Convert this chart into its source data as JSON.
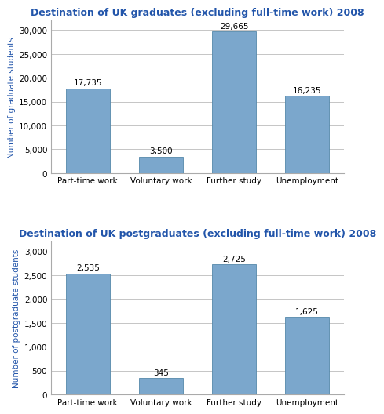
{
  "grad_title": "Destination of UK graduates (excluding full-time work) 2008",
  "postgrad_title": "Destination of UK postgraduates (excluding full-time work) 2008",
  "categories": [
    "Part-time work",
    "Voluntary work",
    "Further study",
    "Unemployment"
  ],
  "grad_values": [
    17735,
    3500,
    29665,
    16235
  ],
  "postgrad_values": [
    2535,
    345,
    2725,
    1625
  ],
  "grad_labels": [
    "17,735",
    "3,500",
    "29,665",
    "16,235"
  ],
  "postgrad_labels": [
    "2,535",
    "345",
    "2,725",
    "1,625"
  ],
  "bar_color": "#7BA7CC",
  "bar_edge_color": "#5588AA",
  "grad_ylabel": "Number of graduate students",
  "postgrad_ylabel": "Number of postgraduate students",
  "grad_ylim": [
    0,
    32000
  ],
  "postgrad_ylim": [
    0,
    3200
  ],
  "grad_yticks": [
    0,
    5000,
    10000,
    15000,
    20000,
    25000,
    30000
  ],
  "postgrad_yticks": [
    0,
    500,
    1000,
    1500,
    2000,
    2500,
    3000
  ],
  "title_color": "#2255AA",
  "ylabel_color": "#2255AA",
  "title_fontsize": 9,
  "label_fontsize": 7.5,
  "ylabel_fontsize": 7.5,
  "tick_fontsize": 7.5,
  "bg_color": "#f5f5f5"
}
